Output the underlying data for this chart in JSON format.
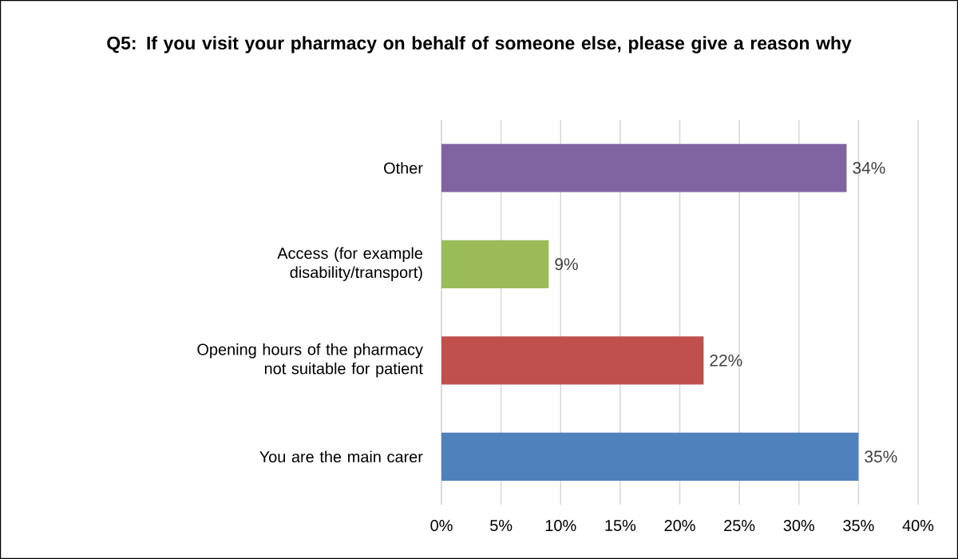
{
  "chart_data": {
    "type": "bar",
    "orientation": "horizontal",
    "title": "Q5: If you visit your pharmacy on behalf of someone else, please give a reason why",
    "categories": [
      "Other",
      "Access (for example disability/transport)",
      "Opening hours of the pharmacy not suitable for patient",
      "You are the main carer"
    ],
    "values": [
      34,
      9,
      22,
      35
    ],
    "colors": [
      "#8064a2",
      "#9bbb59",
      "#c0504d",
      "#4f81bd"
    ],
    "value_labels": [
      "34%",
      "9%",
      "22%",
      "35%"
    ],
    "xlim": [
      0,
      40
    ],
    "xticks": [
      {
        "value": 0,
        "label": "0%"
      },
      {
        "value": 5,
        "label": "5%"
      },
      {
        "value": 10,
        "label": "10%"
      },
      {
        "value": 15,
        "label": "15%"
      },
      {
        "value": 20,
        "label": "20%"
      },
      {
        "value": 25,
        "label": "25%"
      },
      {
        "value": 30,
        "label": "30%"
      },
      {
        "value": 35,
        "label": "35%"
      },
      {
        "value": 40,
        "label": "40%"
      }
    ],
    "grid": "x"
  }
}
